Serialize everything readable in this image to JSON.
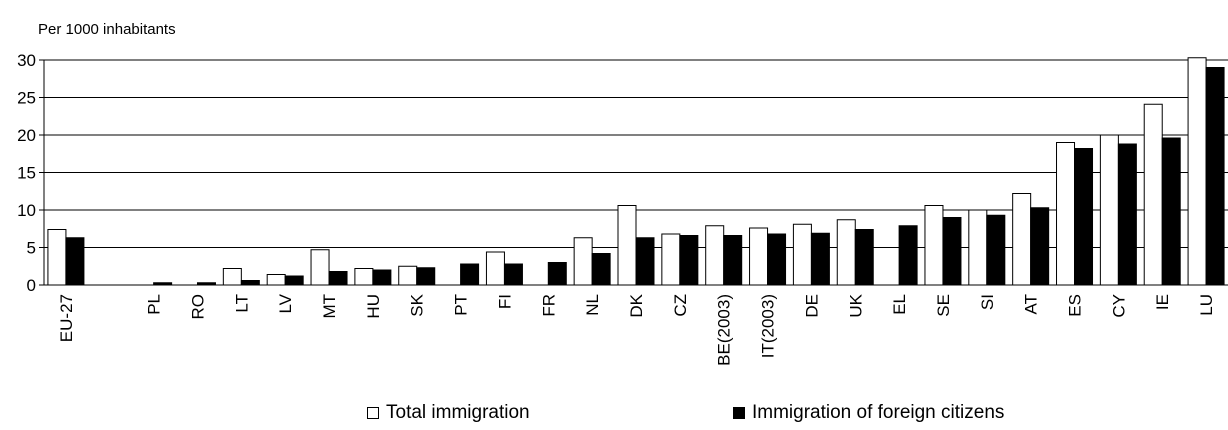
{
  "chart_data": {
    "type": "bar",
    "title": "",
    "ylabel": "Per 1000 inhabitants",
    "xlabel": "",
    "ylim": [
      0,
      30
    ],
    "yticks": [
      0,
      5,
      10,
      15,
      20,
      25,
      30
    ],
    "grid": true,
    "legend_position": "bottom",
    "categories": [
      "EU-27",
      "",
      "PL",
      "RO",
      "LT",
      "LV",
      "MT",
      "HU",
      "SK",
      "PT",
      "FI",
      "FR",
      "NL",
      "DK",
      "CZ",
      "BE(2003)",
      "IT(2003)",
      "DE",
      "UK",
      "EL",
      "SE",
      "SI",
      "AT",
      "ES",
      "CY",
      "IE",
      "LU"
    ],
    "series": [
      {
        "name": "Total immigration",
        "color": "#ffffff",
        "values": [
          7.4,
          null,
          null,
          null,
          2.2,
          1.4,
          4.7,
          2.2,
          2.5,
          null,
          4.4,
          null,
          6.3,
          10.6,
          6.8,
          7.9,
          7.6,
          8.1,
          8.7,
          null,
          10.6,
          10.0,
          12.2,
          19.0,
          20.0,
          24.1,
          30.3
        ]
      },
      {
        "name": "Immigration of foreign citizens",
        "color": "#000000",
        "values": [
          6.3,
          null,
          0.3,
          0.3,
          0.6,
          1.2,
          1.8,
          2.0,
          2.3,
          2.8,
          2.8,
          3.0,
          4.2,
          6.3,
          6.6,
          6.6,
          6.8,
          6.9,
          7.4,
          7.9,
          9.0,
          9.3,
          10.3,
          18.2,
          18.8,
          19.6,
          29.0
        ]
      }
    ]
  }
}
